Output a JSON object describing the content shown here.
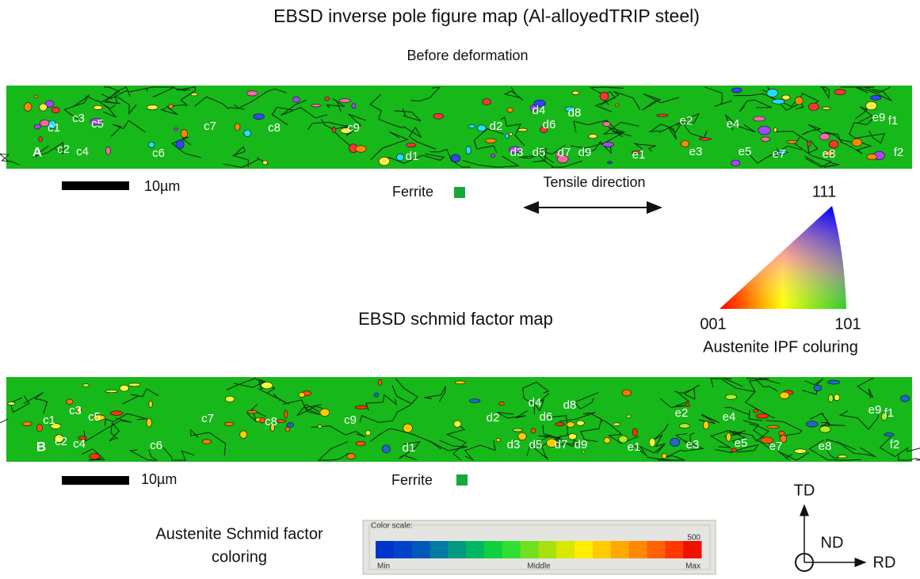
{
  "header": {
    "title": "EBSD inverse pole figure map (Al-alloyedTRIP steel)",
    "subtitle": "Before deformation"
  },
  "ipf_map": {
    "panel_label": "A",
    "grain_labels": [
      "c1",
      "c3",
      "c5",
      "c2",
      "c4",
      "c6",
      "c7",
      "c8",
      "c9",
      "d1",
      "d2",
      "d4",
      "d6",
      "d8",
      "d3",
      "d5",
      "d7",
      "d9",
      "e1",
      "e2",
      "e4",
      "e3",
      "e5",
      "e7",
      "e8",
      "e9",
      "f1",
      "f2"
    ],
    "scale_bar": "10µm",
    "legend": "Ferrite",
    "tensile_direction": "Tensile direction"
  },
  "ipf_key": {
    "corner_111": "111",
    "corner_001": "001",
    "corner_101": "101",
    "caption": "Austenite IPF coluring"
  },
  "schmid_map": {
    "title": "EBSD schmid factor map",
    "panel_label": "B",
    "grain_labels": [
      "c1",
      "c3",
      "c5",
      "c2",
      "c4",
      "c6",
      "c7",
      "c8",
      "c9",
      "d1",
      "d2",
      "d4",
      "d6",
      "d8",
      "d3",
      "d5",
      "d7",
      "d9",
      "e1",
      "e2",
      "e4",
      "e3",
      "e5",
      "e7",
      "e8",
      "e9",
      "f1",
      "f2"
    ],
    "scale_bar": "10µm",
    "legend": "Ferrite"
  },
  "schmid_key": {
    "caption_lines": [
      "Austenite Schmid factor",
      "coloring"
    ],
    "box_title": "Color scale:",
    "max_value": 500,
    "min": "Min",
    "middle": "Middle",
    "max": "Max"
  },
  "axes": {
    "td": "TD",
    "nd": "ND",
    "rd": "RD"
  }
}
